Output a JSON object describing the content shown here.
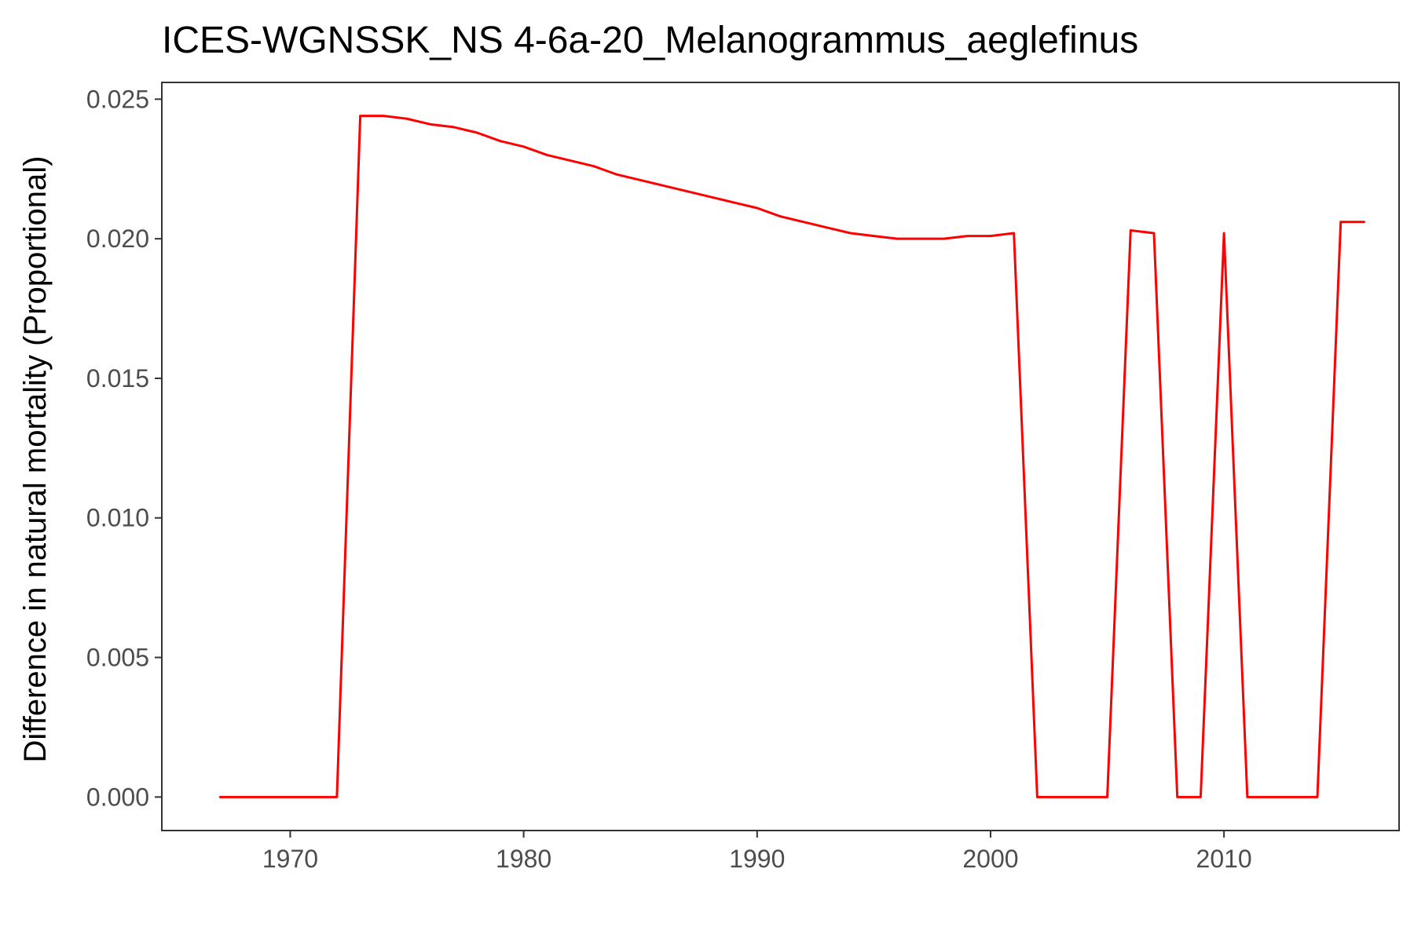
{
  "chart_data": {
    "type": "line",
    "title": "ICES-WGNSSK_NS  4-6a-20_Melanogrammus_aeglefinus",
    "xlabel": "",
    "ylabel": "Difference in natural mortality (Proportional)",
    "xlim": [
      1964.5,
      2017.5
    ],
    "ylim": [
      -0.0012,
      0.0256
    ],
    "x_ticks": [
      1970,
      1980,
      1990,
      2000,
      2010
    ],
    "y_ticks": [
      0.0,
      0.005,
      0.01,
      0.015,
      0.02,
      0.025
    ],
    "y_tick_labels": [
      "0.000",
      "0.005",
      "0.010",
      "0.015",
      "0.020",
      "0.025"
    ],
    "x_tick_labels": [
      "1970",
      "1980",
      "1990",
      "2000",
      "2010"
    ],
    "grid": false,
    "series": [
      {
        "color": "#ff0000",
        "x": [
          1967,
          1968,
          1969,
          1970,
          1971,
          1972,
          1973,
          1974,
          1975,
          1976,
          1977,
          1978,
          1979,
          1980,
          1981,
          1982,
          1983,
          1984,
          1985,
          1986,
          1987,
          1988,
          1989,
          1990,
          1991,
          1992,
          1993,
          1994,
          1995,
          1996,
          1997,
          1998,
          1999,
          2000,
          2001,
          2002,
          2003,
          2004,
          2005,
          2006,
          2007,
          2008,
          2009,
          2010,
          2011,
          2012,
          2013,
          2014,
          2015,
          2016
        ],
        "y": [
          0,
          0,
          0,
          0,
          0,
          0,
          0.0244,
          0.0244,
          0.0243,
          0.0241,
          0.024,
          0.0238,
          0.0235,
          0.0233,
          0.023,
          0.0228,
          0.0226,
          0.0223,
          0.0221,
          0.0219,
          0.0217,
          0.0215,
          0.0213,
          0.0211,
          0.0208,
          0.0206,
          0.0204,
          0.0202,
          0.0201,
          0.02,
          0.02,
          0.02,
          0.0201,
          0.0201,
          0.0202,
          0,
          0,
          0,
          0,
          0.0203,
          0.0202,
          0,
          0,
          0.0202,
          0,
          0,
          0,
          0,
          0.0206,
          0.0206
        ]
      }
    ]
  }
}
